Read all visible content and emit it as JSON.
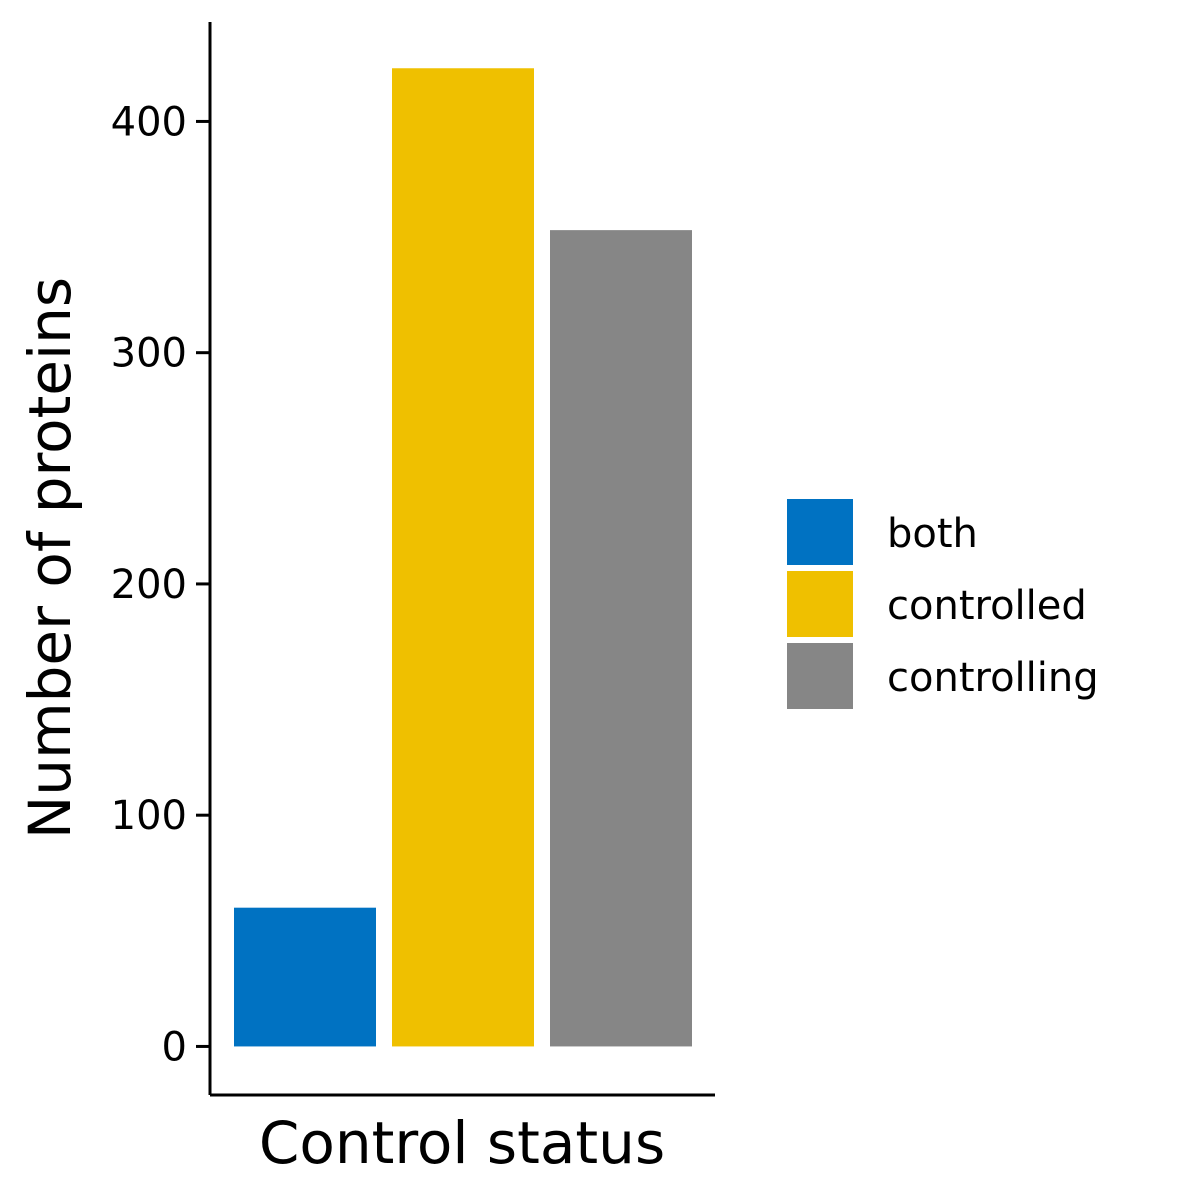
{
  "chart_data": {
    "type": "bar",
    "xlabel": "Control status",
    "ylabel": "Number of proteins",
    "ylim": [
      -21,
      443
    ],
    "yticks": [
      0,
      100,
      200,
      300,
      400
    ],
    "grid": false,
    "legend_position": "right",
    "series": [
      {
        "name": "both",
        "value": 60,
        "color": "#0072C2"
      },
      {
        "name": "controlled",
        "value": 423,
        "color": "#EFC000"
      },
      {
        "name": "controlling",
        "value": 353,
        "color": "#868686"
      }
    ]
  }
}
